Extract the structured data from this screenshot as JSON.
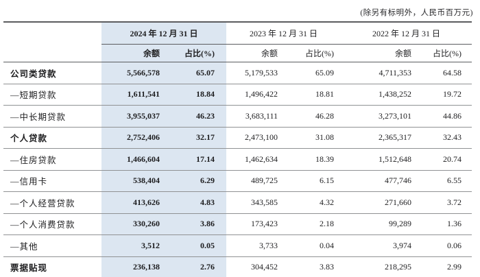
{
  "note": "(除另有标明外，人民币百万元)",
  "header": {
    "groups": [
      {
        "date": "2024 年 12 月 31 日",
        "balance": "余额",
        "pct": "占比(%)",
        "highlight": true
      },
      {
        "date": "2023 年 12 月 31 日",
        "balance": "余额",
        "pct": "占比(%)",
        "highlight": false
      },
      {
        "date": "2022 年 12 月 31 日",
        "balance": "余额",
        "pct": "占比(%)",
        "highlight": false
      }
    ]
  },
  "rows": [
    {
      "label": "公司类贷款",
      "bold": true,
      "values": [
        "5,566,578",
        "65.07",
        "5,179,533",
        "65.09",
        "4,711,353",
        "64.58"
      ]
    },
    {
      "label": "—短期贷款",
      "bold": false,
      "values": [
        "1,611,541",
        "18.84",
        "1,496,422",
        "18.81",
        "1,438,252",
        "19.72"
      ]
    },
    {
      "label": "—中长期贷款",
      "bold": false,
      "values": [
        "3,955,037",
        "46.23",
        "3,683,111",
        "46.28",
        "3,273,101",
        "44.86"
      ]
    },
    {
      "label": "个人贷款",
      "bold": true,
      "values": [
        "2,752,406",
        "32.17",
        "2,473,100",
        "31.08",
        "2,365,317",
        "32.43"
      ]
    },
    {
      "label": "—住房贷款",
      "bold": false,
      "values": [
        "1,466,604",
        "17.14",
        "1,462,634",
        "18.39",
        "1,512,648",
        "20.74"
      ]
    },
    {
      "label": "—信用卡",
      "bold": false,
      "values": [
        "538,404",
        "6.29",
        "489,725",
        "6.15",
        "477,746",
        "6.55"
      ]
    },
    {
      "label": "—个人经营贷款",
      "bold": false,
      "values": [
        "413,626",
        "4.83",
        "343,585",
        "4.32",
        "271,660",
        "3.72"
      ]
    },
    {
      "label": "—个人消费贷款",
      "bold": false,
      "values": [
        "330,260",
        "3.86",
        "173,423",
        "2.18",
        "99,289",
        "1.36"
      ]
    },
    {
      "label": "—其他",
      "bold": false,
      "values": [
        "3,512",
        "0.05",
        "3,733",
        "0.04",
        "3,974",
        "0.06"
      ]
    },
    {
      "label": "票据贴现",
      "bold": true,
      "values": [
        "236,138",
        "2.76",
        "304,452",
        "3.83",
        "218,295",
        "2.99"
      ]
    }
  ],
  "colors": {
    "highlight": "#dce6f1",
    "rule_dark": "#5a5b5e",
    "rule_light": "#8f9193",
    "text": "#1d1d1f"
  }
}
